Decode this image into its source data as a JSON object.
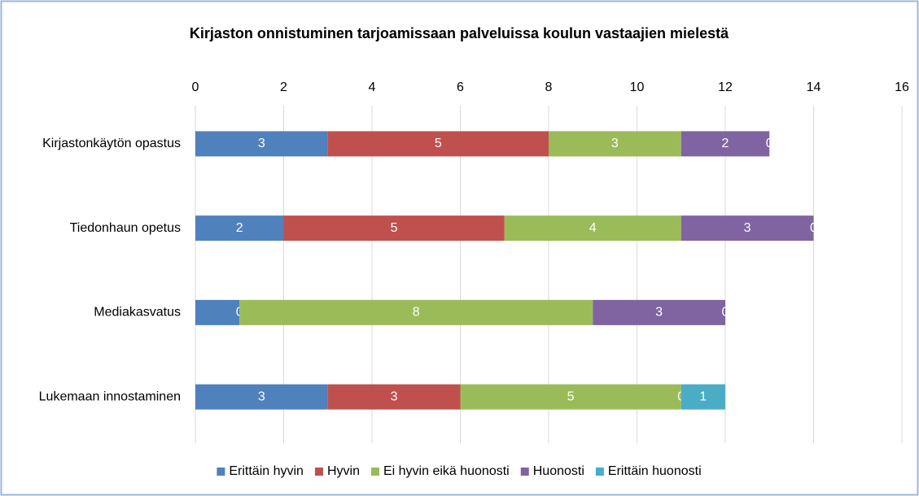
{
  "chart_data": {
    "type": "stacked-barh",
    "title": "Kirjaston onnistuminen tarjoamissaan palveluissa koulun vastaajien mielestä",
    "categories": [
      "Kirjastonkäytön opastus",
      "Tiedonhaun opetus",
      "Mediakasvatus",
      "Lukemaan innostaminen"
    ],
    "series": [
      {
        "name": "Erittäin hyvin",
        "color": "#4f81bd",
        "values": [
          3,
          2,
          1,
          3
        ],
        "value_labels": [
          "3",
          "2",
          null,
          "3"
        ]
      },
      {
        "name": "Hyvin",
        "color": "#c0504d",
        "values": [
          5,
          5,
          0,
          3
        ]
      },
      {
        "name": "Ei hyvin eikä huonosti",
        "color": "#9bbb59",
        "values": [
          3,
          4,
          8,
          5
        ]
      },
      {
        "name": "Huonosti",
        "color": "#8064a2",
        "values": [
          2,
          3,
          3,
          0
        ]
      },
      {
        "name": "Erittäin huonosti",
        "color": "#4bacc6",
        "values": [
          0,
          0,
          0,
          1
        ]
      }
    ],
    "xlim": [
      0,
      16
    ],
    "xticks": [
      0,
      2,
      4,
      6,
      8,
      10,
      12,
      14,
      16
    ],
    "grid": true,
    "legend": "bottom"
  }
}
